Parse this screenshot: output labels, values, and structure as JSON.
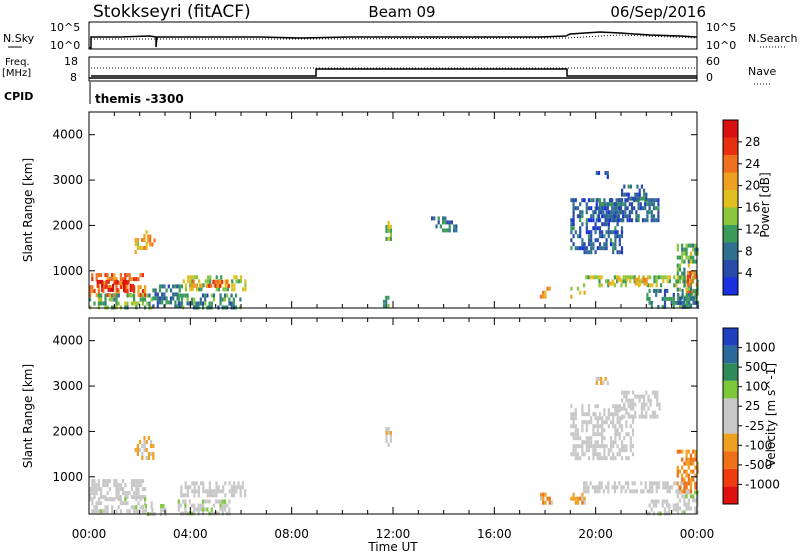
{
  "header": {
    "station": "Stokkseyri (fitACF)",
    "beam": "Beam 09",
    "date": "06/Sep/2016"
  },
  "top_panels": {
    "nsky_label": "N.Sky",
    "nsky_ticks": [
      "10^5",
      "10^0"
    ],
    "nsearch_label": "N.Search",
    "nsearch_ticks": [
      "10^5",
      "10^0"
    ],
    "freq_label_line1": "Freq.",
    "freq_label_line2": "[MHz]",
    "freq_ticks": [
      "18",
      "8"
    ],
    "nave_label": "Nave",
    "nave_ticks": [
      "60",
      "0"
    ],
    "cpid_label": "CPID",
    "cpid_text": "themis -3300"
  },
  "colors": {
    "power_scale": [
      "#1a2fe0",
      "#2a4aa8",
      "#2f6f8f",
      "#3a9a5a",
      "#8cc63f",
      "#e0c020",
      "#f0a020",
      "#f07020",
      "#e83010",
      "#d81010"
    ],
    "velocity_scale": [
      "#1f3fbf",
      "#2a6a9a",
      "#2f8a5a",
      "#7cc83a",
      "#c8c8c8",
      "#c8c8c8",
      "#f0a020",
      "#f07018",
      "#f03a10",
      "#e01010"
    ]
  },
  "chart_data": [
    {
      "type": "heatmap",
      "title": "",
      "xlabel": "",
      "ylabel": "Slant Range [km]",
      "ylim": [
        180,
        4500
      ],
      "xlim_hours": [
        0,
        24
      ],
      "y_ticks": [
        "4000",
        "3000",
        "2000",
        "1000"
      ],
      "colorbar": {
        "label": "Power [dB]",
        "ticks": [
          "28",
          "24",
          "20",
          "16",
          "12",
          "8",
          "4"
        ],
        "range": [
          0,
          30
        ]
      },
      "regions": [
        {
          "t0": 0.0,
          "t1": 2.2,
          "r0": 500,
          "r1": 950,
          "value": 22
        },
        {
          "t0": 0.3,
          "t1": 1.8,
          "r0": 600,
          "r1": 800,
          "value": 28
        },
        {
          "t0": 1.8,
          "t1": 2.4,
          "r0": 1450,
          "r1": 1900,
          "value": 18
        },
        {
          "t0": 2.2,
          "t1": 2.6,
          "r0": 1600,
          "r1": 1800,
          "value": 22
        },
        {
          "t0": 0.0,
          "t1": 2.5,
          "r0": 200,
          "r1": 500,
          "value": 12
        },
        {
          "t0": 2.5,
          "t1": 3.7,
          "r0": 200,
          "r1": 700,
          "value": 8
        },
        {
          "t0": 3.7,
          "t1": 6.2,
          "r0": 550,
          "r1": 900,
          "value": 14
        },
        {
          "t0": 4.0,
          "t1": 5.5,
          "r0": 650,
          "r1": 800,
          "value": 22
        },
        {
          "t0": 3.5,
          "t1": 6.0,
          "r0": 200,
          "r1": 500,
          "value": 9
        },
        {
          "t0": 11.7,
          "t1": 11.9,
          "r0": 1700,
          "r1": 2100,
          "value": 14
        },
        {
          "t0": 11.6,
          "t1": 11.8,
          "r0": 200,
          "r1": 450,
          "value": 10
        },
        {
          "t0": 13.5,
          "t1": 14.5,
          "r0": 1900,
          "r1": 2200,
          "value": 8
        },
        {
          "t0": 17.8,
          "t1": 18.2,
          "r0": 400,
          "r1": 650,
          "value": 20
        },
        {
          "t0": 19.0,
          "t1": 19.6,
          "r0": 400,
          "r1": 650,
          "value": 18
        },
        {
          "t0": 19.0,
          "t1": 21.0,
          "r0": 1400,
          "r1": 2600,
          "value": 6
        },
        {
          "t0": 19.5,
          "t1": 23.5,
          "r0": 700,
          "r1": 900,
          "value": 14
        },
        {
          "t0": 20.5,
          "t1": 22.0,
          "r0": 750,
          "r1": 850,
          "value": 20
        },
        {
          "t0": 20.0,
          "t1": 22.5,
          "r0": 2100,
          "r1": 2600,
          "value": 6
        },
        {
          "t0": 21.0,
          "t1": 22.0,
          "r0": 2600,
          "r1": 2900,
          "value": 6
        },
        {
          "t0": 20.0,
          "t1": 20.5,
          "r0": 3050,
          "r1": 3200,
          "value": 4
        },
        {
          "t0": 23.2,
          "t1": 24.0,
          "r0": 200,
          "r1": 1600,
          "value": 12
        },
        {
          "t0": 23.6,
          "t1": 24.0,
          "r0": 500,
          "r1": 1000,
          "value": 22
        },
        {
          "t0": 22.0,
          "t1": 24.0,
          "r0": 200,
          "r1": 600,
          "value": 8
        }
      ]
    },
    {
      "type": "heatmap",
      "title": "",
      "xlabel": "Time UT",
      "ylabel": "Slant Range [km]",
      "ylim": [
        180,
        4500
      ],
      "xlim_hours": [
        0,
        24
      ],
      "x_ticks": [
        "00:00",
        "04:00",
        "08:00",
        "12:00",
        "16:00",
        "20:00",
        "00:00"
      ],
      "y_ticks": [
        "4000",
        "3000",
        "2000",
        "1000"
      ],
      "colorbar": {
        "label": "Velocity [m s^-1]",
        "ticks": [
          "1000",
          "500",
          "100",
          "25",
          "-25",
          "-100",
          "-500",
          "-1000"
        ],
        "range": [
          -1200,
          1200
        ]
      },
      "regions": [
        {
          "t0": 0.0,
          "t1": 2.2,
          "r0": 550,
          "r1": 950,
          "value": 0
        },
        {
          "t0": 0.0,
          "t1": 2.5,
          "r0": 200,
          "r1": 550,
          "value": 80
        },
        {
          "t0": 1.8,
          "t1": 2.5,
          "r0": 1450,
          "r1": 1900,
          "value": -300
        },
        {
          "t0": 2.2,
          "t1": 3.0,
          "r0": 200,
          "r1": 400,
          "value": 150
        },
        {
          "t0": 3.6,
          "t1": 6.2,
          "r0": 550,
          "r1": 900,
          "value": 0
        },
        {
          "t0": 3.5,
          "t1": 5.5,
          "r0": 200,
          "r1": 500,
          "value": 120
        },
        {
          "t0": 11.7,
          "t1": 11.9,
          "r0": 1700,
          "r1": 2100,
          "value": -150
        },
        {
          "t0": 17.8,
          "t1": 18.3,
          "r0": 400,
          "r1": 650,
          "value": -400
        },
        {
          "t0": 19.0,
          "t1": 19.6,
          "r0": 400,
          "r1": 650,
          "value": -300
        },
        {
          "t0": 19.0,
          "t1": 21.5,
          "r0": 1400,
          "r1": 2600,
          "value": 0
        },
        {
          "t0": 19.5,
          "t1": 23.5,
          "r0": 700,
          "r1": 900,
          "value": 0
        },
        {
          "t0": 20.0,
          "t1": 20.5,
          "r0": 3050,
          "r1": 3200,
          "value": -150
        },
        {
          "t0": 21.0,
          "t1": 22.5,
          "r0": 2300,
          "r1": 2900,
          "value": 0
        },
        {
          "t0": 23.2,
          "t1": 24.0,
          "r0": 700,
          "r1": 1600,
          "value": -500
        },
        {
          "t0": 23.2,
          "t1": 24.0,
          "r0": 200,
          "r1": 700,
          "value": 150
        },
        {
          "t0": 22.0,
          "t1": 23.2,
          "r0": 200,
          "r1": 500,
          "value": 60
        }
      ]
    }
  ]
}
